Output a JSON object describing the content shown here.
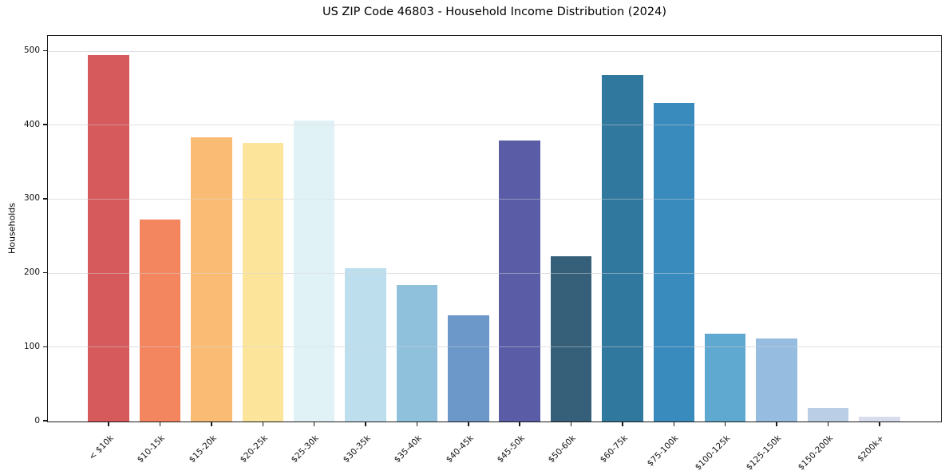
{
  "chart_data": {
    "type": "bar",
    "title": "US ZIP Code 46803 - Household Income Distribution (2024)",
    "xlabel": "",
    "ylabel": "Households",
    "categories": [
      "< $10k",
      "$10-15k",
      "$15-20k",
      "$20-25k",
      "$25-30k",
      "$30-35k",
      "$35-40k",
      "$40-45k",
      "$45-50k",
      "$50-60k",
      "$60-75k",
      "$75-100k",
      "$100-125k",
      "$125-150k",
      "$150-200k",
      "$200k+"
    ],
    "values": [
      495,
      273,
      384,
      377,
      407,
      207,
      184,
      143,
      380,
      223,
      468,
      431,
      119,
      112,
      18,
      6
    ],
    "bar_colors": [
      "#d6595b",
      "#f3855f",
      "#fabc74",
      "#fce49b",
      "#e1f2f6",
      "#bddfed",
      "#8fc0dc",
      "#6b97c9",
      "#5a5ca6",
      "#366079",
      "#31789e",
      "#398bbd",
      "#5fa8cf",
      "#96bcdf",
      "#bacfe6",
      "#d8dcec"
    ],
    "yticks": [
      0,
      100,
      200,
      300,
      400,
      500
    ],
    "ylim": [
      0,
      520
    ],
    "grid": true,
    "legend_position": "none"
  }
}
